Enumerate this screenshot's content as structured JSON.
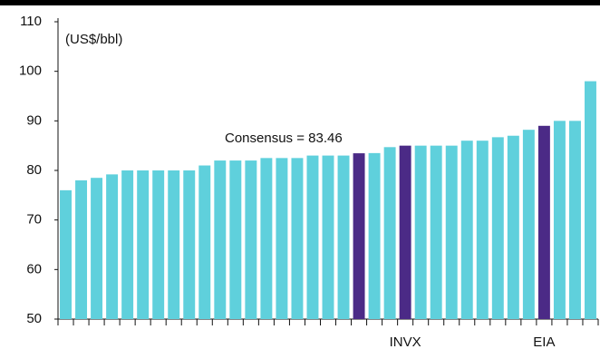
{
  "chart_data": {
    "type": "bar",
    "y_axis_label": "(US$/bbl)",
    "annotation": "Consensus = 83.46",
    "categories": [
      null,
      null,
      null,
      null,
      null,
      null,
      null,
      null,
      null,
      null,
      null,
      null,
      null,
      null,
      null,
      null,
      null,
      null,
      null,
      null,
      null,
      null,
      "INVX",
      null,
      null,
      null,
      null,
      null,
      null,
      null,
      null,
      "EIA",
      null,
      null,
      null
    ],
    "values": [
      76,
      78,
      78.5,
      79.2,
      80,
      80,
      80,
      80,
      80,
      81,
      82,
      82,
      82,
      82.5,
      82.5,
      82.5,
      83,
      83,
      83,
      83.46,
      83.5,
      84.7,
      85,
      85,
      85,
      85,
      86,
      86,
      86.7,
      87,
      88.2,
      89,
      90,
      90,
      98
    ],
    "colors": [
      "#5fd0dc",
      "#5fd0dc",
      "#5fd0dc",
      "#5fd0dc",
      "#5fd0dc",
      "#5fd0dc",
      "#5fd0dc",
      "#5fd0dc",
      "#5fd0dc",
      "#5fd0dc",
      "#5fd0dc",
      "#5fd0dc",
      "#5fd0dc",
      "#5fd0dc",
      "#5fd0dc",
      "#5fd0dc",
      "#5fd0dc",
      "#5fd0dc",
      "#5fd0dc",
      "#4b2a86",
      "#5fd0dc",
      "#5fd0dc",
      "#4b2a86",
      "#5fd0dc",
      "#5fd0dc",
      "#5fd0dc",
      "#5fd0dc",
      "#5fd0dc",
      "#5fd0dc",
      "#5fd0dc",
      "#5fd0dc",
      "#4b2a86",
      "#5fd0dc",
      "#5fd0dc",
      "#5fd0dc"
    ],
    "ylim": [
      50,
      110
    ],
    "yticks": [
      50,
      60,
      70,
      80,
      90,
      100,
      110
    ],
    "grid": false
  }
}
